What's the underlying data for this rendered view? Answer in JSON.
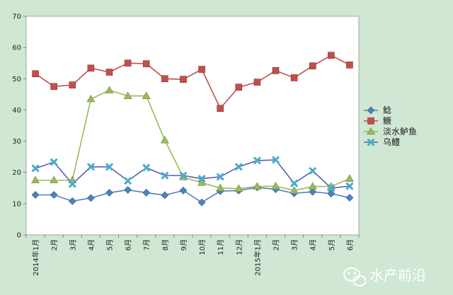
{
  "chart_data": {
    "type": "line",
    "categories": [
      "2014年1月",
      "2月",
      "3月",
      "4月",
      "5月",
      "6月",
      "7月",
      "8月",
      "9月",
      "10月",
      "11月",
      "12月",
      "2015年1月",
      "2月",
      "3月",
      "4月",
      "5月",
      "6月"
    ],
    "ylim": [
      0,
      70
    ],
    "yticks": [
      0,
      10,
      20,
      30,
      40,
      50,
      60,
      70
    ],
    "grid": false,
    "legend_position": "right",
    "series": [
      {
        "name": "鲶",
        "color": "#4f81bd",
        "marker": "diamond",
        "values": [
          12.8,
          12.8,
          10.8,
          11.8,
          13.5,
          14.4,
          13.5,
          12.7,
          14.2,
          10.4,
          14.0,
          14.2,
          15.2,
          14.6,
          13.3,
          13.8,
          13.2,
          11.9
        ]
      },
      {
        "name": "鳜",
        "color": "#c0504d",
        "marker": "square",
        "values": [
          51.6,
          47.5,
          48.0,
          53.4,
          52.1,
          55.0,
          54.8,
          50.0,
          49.8,
          53.0,
          40.5,
          47.3,
          48.9,
          52.6,
          50.3,
          54.1,
          57.5,
          54.4
        ]
      },
      {
        "name": "淡水鲈鱼",
        "color": "#9bbb59",
        "marker": "triangle",
        "values": [
          17.5,
          17.5,
          17.5,
          43.5,
          46.3,
          44.5,
          44.5,
          30.3,
          18.5,
          16.7,
          15.0,
          14.8,
          15.5,
          15.6,
          14.2,
          15.5,
          15.5,
          18.0
        ]
      },
      {
        "name": "乌鳢",
        "color": "#4bacc6",
        "marker": "x",
        "values": [
          21.3,
          23.3,
          16.3,
          21.8,
          21.8,
          17.3,
          21.5,
          19.0,
          19.0,
          18.0,
          18.6,
          21.8,
          23.8,
          24.0,
          16.5,
          20.5,
          15.0,
          15.6
        ]
      }
    ]
  },
  "watermark": {
    "text": "水产前沿",
    "icon": "wechat-icon"
  }
}
